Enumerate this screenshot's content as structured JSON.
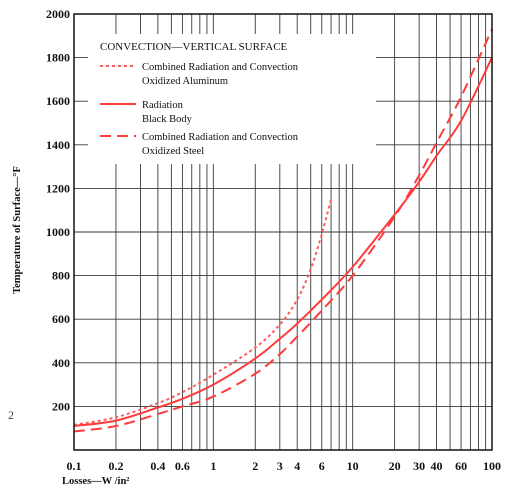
{
  "chart_data": {
    "type": "line",
    "x_scale": "log",
    "xlim": [
      0.1,
      100
    ],
    "ylim": [
      0,
      2000
    ],
    "grid": true,
    "x_ticks": [
      {
        "value": 0.1,
        "label": "0.1"
      },
      {
        "value": 0.2,
        "label": "0.2"
      },
      {
        "value": 0.4,
        "label": "0.4"
      },
      {
        "value": 0.6,
        "label": "0.6"
      },
      {
        "value": 1,
        "label": "1"
      },
      {
        "value": 2,
        "label": "2"
      },
      {
        "value": 3,
        "label": "3"
      },
      {
        "value": 4,
        "label": "4"
      },
      {
        "value": 6,
        "label": "6"
      },
      {
        "value": 10,
        "label": "10"
      },
      {
        "value": 20,
        "label": "20"
      },
      {
        "value": 30,
        "label": "30"
      },
      {
        "value": 40,
        "label": "40"
      },
      {
        "value": 60,
        "label": "60"
      },
      {
        "value": 100,
        "label": "100"
      }
    ],
    "x_grid": [
      0.1,
      0.2,
      0.3,
      0.4,
      0.5,
      0.6,
      0.7,
      0.8,
      0.9,
      1,
      2,
      3,
      4,
      5,
      6,
      7,
      8,
      9,
      10,
      20,
      30,
      40,
      50,
      60,
      70,
      80,
      90,
      100
    ],
    "y_ticks": [
      {
        "value": 200,
        "label": "200"
      },
      {
        "value": 400,
        "label": "400"
      },
      {
        "value": 600,
        "label": "600"
      },
      {
        "value": 800,
        "label": "800"
      },
      {
        "value": 1000,
        "label": "1000"
      },
      {
        "value": 1200,
        "label": "1200"
      },
      {
        "value": 1400,
        "label": "1400"
      },
      {
        "value": 1600,
        "label": "1600"
      },
      {
        "value": 1800,
        "label": "1800"
      },
      {
        "value": 2000,
        "label": "2000"
      }
    ],
    "xlabel": "Losses—W /in²",
    "ylabel": "Temperature of Surface—°F",
    "legend": {
      "title": "CONVECTION—VERTICAL SURFACE",
      "placement": "top-left",
      "entries": [
        {
          "series": 0,
          "lines": [
            "Combined Radiation and Convection",
            "Oxidized Aluminum"
          ]
        },
        {
          "series": 1,
          "lines": [
            "Radiation",
            "Black Body"
          ]
        },
        {
          "series": 2,
          "lines": [
            "Combined Radiation and Convection",
            "Oxidized Steel"
          ]
        }
      ]
    },
    "series": [
      {
        "name": "Combined Radiation and Convection Oxidized Aluminum",
        "style": "dotted",
        "color": "#ff5a5a",
        "x": [
          0.1,
          0.2,
          0.4,
          0.6,
          1,
          2,
          3,
          4,
          5,
          6,
          7
        ],
        "y": [
          115,
          150,
          215,
          265,
          345,
          470,
          575,
          690,
          830,
          990,
          1150
        ]
      },
      {
        "name": "Radiation Black Body",
        "style": "solid",
        "color": "#ff3b3b",
        "x": [
          0.1,
          0.2,
          0.4,
          0.6,
          1,
          2,
          3,
          4,
          6,
          10,
          20,
          30,
          40,
          60,
          100
        ],
        "y": [
          110,
          135,
          195,
          235,
          300,
          420,
          510,
          580,
          690,
          840,
          1080,
          1230,
          1350,
          1510,
          1800
        ]
      },
      {
        "name": "Combined Radiation and Convection Oxidized Steel",
        "style": "dashed",
        "color": "#ff3b3b",
        "x": [
          0.1,
          0.2,
          0.4,
          0.6,
          1,
          2,
          3,
          4,
          6,
          10,
          20,
          30,
          40,
          60,
          100
        ],
        "y": [
          85,
          110,
          165,
          200,
          245,
          350,
          440,
          520,
          640,
          800,
          1070,
          1260,
          1410,
          1620,
          1930
        ]
      }
    ],
    "stray_text": "2"
  },
  "colors": {
    "grid": "#3a3a3a",
    "frame": "#111111",
    "series": "#ff3b3b"
  }
}
